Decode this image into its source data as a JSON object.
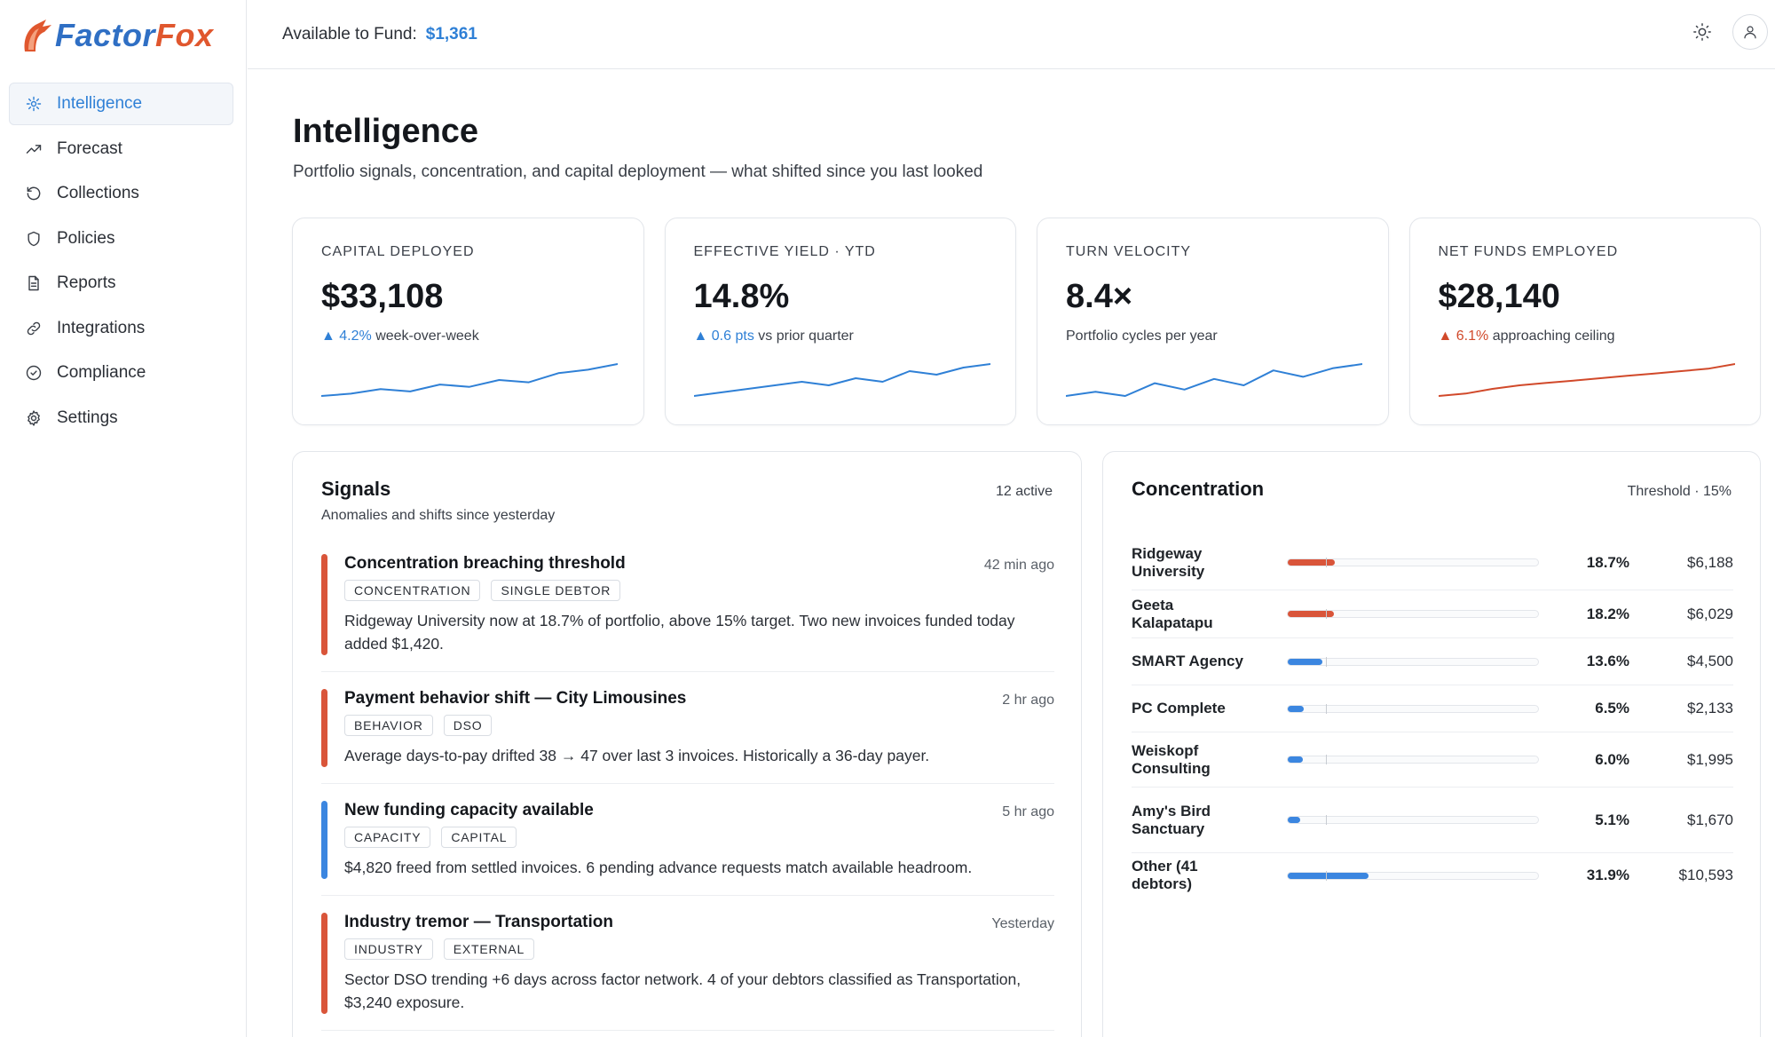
{
  "brand": {
    "name_part1": "Factor",
    "name_part2": "Fox"
  },
  "nav": [
    {
      "label": "Intelligence",
      "icon": "sparkle-icon",
      "active": true
    },
    {
      "label": "Forecast",
      "icon": "trend-up-icon"
    },
    {
      "label": "Collections",
      "icon": "refresh-icon"
    },
    {
      "label": "Policies",
      "icon": "shield-icon"
    },
    {
      "label": "Reports",
      "icon": "document-icon"
    },
    {
      "label": "Integrations",
      "icon": "link-icon"
    },
    {
      "label": "Compliance",
      "icon": "check-circle-icon"
    },
    {
      "label": "Settings",
      "icon": "gear-icon"
    }
  ],
  "topbar": {
    "fund_label": "Available to Fund:",
    "fund_value": "$1,361"
  },
  "page": {
    "title": "Intelligence",
    "subtitle": "Portfolio signals, concentration, and capital deployment — what shifted since you last looked"
  },
  "kpis": [
    {
      "label": "CAPITAL DEPLOYED",
      "value": "$33,108",
      "delta_value": "▲ 4.2%",
      "delta_text": "week-over-week",
      "color": "#2f80d6",
      "spark": [
        2,
        4,
        8,
        6,
        12,
        10,
        16,
        14,
        22,
        25,
        30
      ]
    },
    {
      "label": "EFFECTIVE YIELD · YTD",
      "value": "14.8%",
      "delta_value": "▲ 0.6 pts",
      "delta_text": "vs prior quarter",
      "color": "#2f80d6",
      "spark": [
        4,
        6,
        8,
        10,
        12,
        10,
        14,
        12,
        18,
        16,
        20,
        22
      ]
    },
    {
      "label": "TURN VELOCITY",
      "value": "8.4×",
      "delta_value": "",
      "delta_text": "Portfolio cycles per year",
      "color": "#2f80d6",
      "spark": [
        6,
        8,
        6,
        12,
        9,
        14,
        11,
        18,
        15,
        19,
        21
      ]
    },
    {
      "label": "NET FUNDS EMPLOYED",
      "value": "$28,140",
      "delta_value": "▲ 6.1%",
      "delta_text": "approaching ceiling",
      "color": "#d1492a",
      "spark": [
        2,
        4,
        8,
        11,
        13,
        15,
        17,
        19,
        21,
        23,
        25,
        29
      ]
    }
  ],
  "signals": {
    "title": "Signals",
    "subtitle": "Anomalies and shifts since yesterday",
    "count": "12 active",
    "items": [
      {
        "title": "Concentration breaching threshold",
        "time": "42 min ago",
        "tags": [
          "CONCENTRATION",
          "SINGLE DEBTOR"
        ],
        "desc": "Ridgeway University now at 18.7% of portfolio, above 15% target. Two new invoices funded today added $1,420.",
        "color": "#d9553a"
      },
      {
        "title": "Payment behavior shift — City Limousines",
        "time": "2 hr ago",
        "tags": [
          "BEHAVIOR",
          "DSO"
        ],
        "desc": "Average days-to-pay drifted 38 → 47 over last 3 invoices. Historically a 36-day payer.",
        "color": "#d9553a"
      },
      {
        "title": "New funding capacity available",
        "time": "5 hr ago",
        "tags": [
          "CAPACITY",
          "CAPITAL"
        ],
        "desc": "$4,820 freed from settled invoices. 6 pending advance requests match available headroom.",
        "color": "#3b86e0"
      },
      {
        "title": "Industry tremor — Transportation",
        "time": "Yesterday",
        "tags": [
          "INDUSTRY",
          "EXTERNAL"
        ],
        "desc": "Sector DSO trending +6 days across factor network. 4 of your debtors classified as Transportation, $3,240 exposure.",
        "color": "#d9553a"
      }
    ]
  },
  "concentration": {
    "title": "Concentration",
    "threshold_label": "Threshold · 15%",
    "threshold": 15,
    "rows": [
      {
        "name": "Ridgeway University",
        "pct": "18.7%",
        "amount": "$6,188",
        "value": 18.7,
        "color": "#d9553a"
      },
      {
        "name": "Geeta Kalapatapu",
        "pct": "18.2%",
        "amount": "$6,029",
        "value": 18.2,
        "color": "#d9553a"
      },
      {
        "name": "SMART Agency",
        "pct": "13.6%",
        "amount": "$4,500",
        "value": 13.6,
        "color": "#3b86e0"
      },
      {
        "name": "PC Complete",
        "pct": "6.5%",
        "amount": "$2,133",
        "value": 6.5,
        "color": "#3b86e0"
      },
      {
        "name": "Weiskopf Consulting",
        "pct": "6.0%",
        "amount": "$1,995",
        "value": 6.0,
        "color": "#3b86e0"
      },
      {
        "name": "Amy's Bird Sanctuary",
        "pct": "5.1%",
        "amount": "$1,670",
        "value": 5.1,
        "color": "#3b86e0"
      },
      {
        "name": "Other (41 debtors)",
        "pct": "31.9%",
        "amount": "$10,593",
        "value": 31.9,
        "color": "#3b86e0"
      }
    ]
  }
}
